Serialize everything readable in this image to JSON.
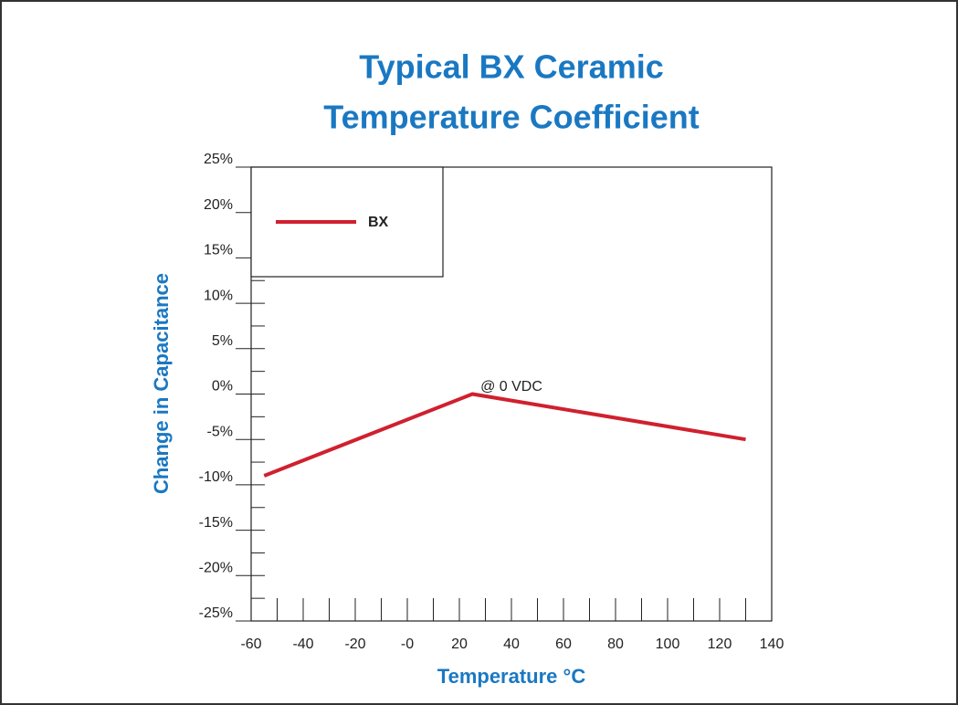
{
  "chart_data": {
    "type": "line",
    "title": [
      "Typical BX Ceramic",
      "Temperature Coefficient"
    ],
    "x_label": "Temperature °C",
    "y_label": "Change in Capacitance",
    "x": [
      -55,
      25,
      130
    ],
    "series": [
      {
        "name": "BX",
        "color": "#d0202e",
        "values": [
          -9,
          0,
          -5
        ]
      }
    ],
    "annotations": [
      {
        "text": "@ 0 VDC",
        "x": 40,
        "y": 0.8
      }
    ],
    "xlim": [
      -60,
      140
    ],
    "xticks": [
      -60,
      -40,
      -20,
      {
        "value": 0,
        "label": "-0"
      },
      20,
      40,
      60,
      80,
      100,
      120,
      140
    ],
    "ylim": [
      -25,
      25
    ],
    "yticks": [
      {
        "value": -25,
        "label": "-25%"
      },
      {
        "value": -20,
        "label": "-20%"
      },
      {
        "value": -15,
        "label": "-15%"
      },
      {
        "value": -10,
        "label": "-10%"
      },
      {
        "value": -5,
        "label": "-5%"
      },
      {
        "value": 0,
        "label": "0%"
      },
      {
        "value": 5,
        "label": "5%"
      },
      {
        "value": 10,
        "label": "10%"
      },
      {
        "value": 15,
        "label": "15%"
      },
      {
        "value": 20,
        "label": "20%"
      },
      {
        "value": 25,
        "label": "25%"
      }
    ],
    "legend": "upper left",
    "grid": false
  }
}
